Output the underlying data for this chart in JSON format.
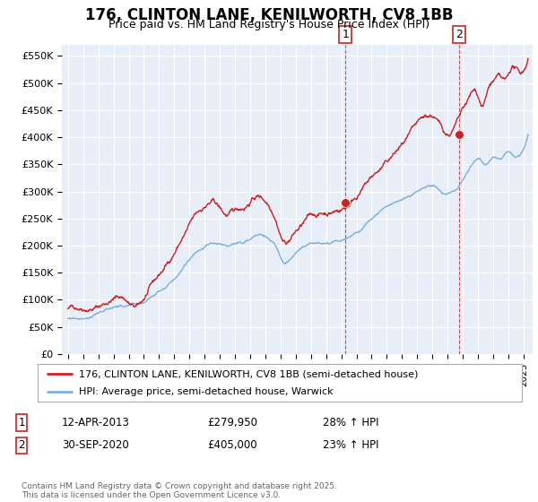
{
  "title_line1": "176, CLINTON LANE, KENILWORTH, CV8 1BB",
  "title_line2": "Price paid vs. HM Land Registry's House Price Index (HPI)",
  "ylim": [
    0,
    570000
  ],
  "yticks": [
    0,
    50000,
    100000,
    150000,
    200000,
    250000,
    300000,
    350000,
    400000,
    450000,
    500000,
    550000
  ],
  "ytick_labels": [
    "£0",
    "£50K",
    "£100K",
    "£150K",
    "£200K",
    "£250K",
    "£300K",
    "£350K",
    "£400K",
    "£450K",
    "£500K",
    "£550K"
  ],
  "xlim_start": 1994.6,
  "xlim_end": 2025.6,
  "background_color": "#ffffff",
  "plot_bg_color": "#e8eef8",
  "grid_color": "#ffffff",
  "red_color": "#cc2222",
  "blue_color": "#7aafdd",
  "marker1_date": 2013.28,
  "marker1_value": 279950,
  "marker2_date": 2020.75,
  "marker2_value": 405000,
  "legend_line1": "176, CLINTON LANE, KENILWORTH, CV8 1BB (semi-detached house)",
  "legend_line2": "HPI: Average price, semi-detached house, Warwick",
  "table_row1": [
    "1",
    "12-APR-2013",
    "£279,950",
    "28% ↑ HPI"
  ],
  "table_row2": [
    "2",
    "30-SEP-2020",
    "£405,000",
    "23% ↑ HPI"
  ],
  "footer": "Contains HM Land Registry data © Crown copyright and database right 2025.\nThis data is licensed under the Open Government Licence v3.0.",
  "title_fontsize": 12,
  "subtitle_fontsize": 9
}
